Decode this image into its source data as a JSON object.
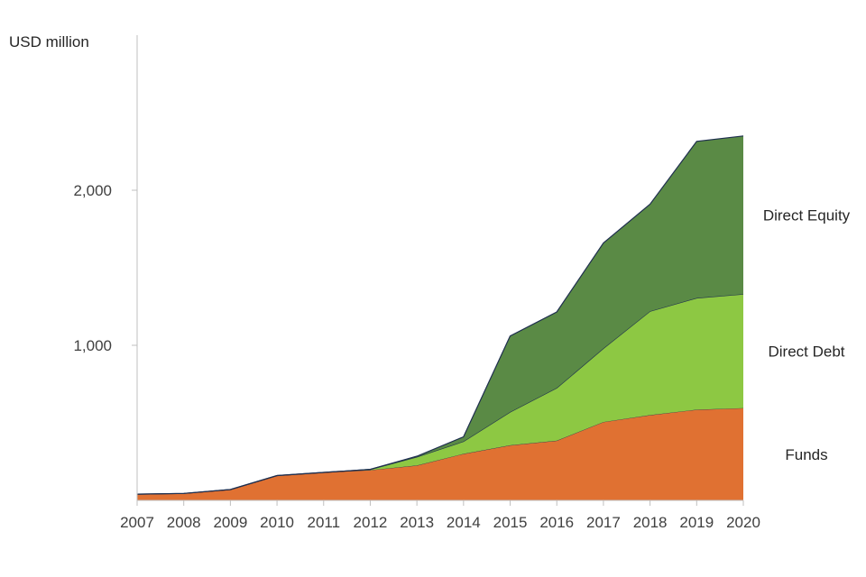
{
  "chart_data": {
    "type": "area",
    "stacked": true,
    "ylabel": "USD million",
    "ylim": [
      0,
      3000
    ],
    "yticks": [
      1000,
      2000
    ],
    "ytick_labels": [
      "1,000",
      "2,000"
    ],
    "categories": [
      "2007",
      "2008",
      "2009",
      "2010",
      "2011",
      "2012",
      "2013",
      "2014",
      "2015",
      "2016",
      "2017",
      "2018",
      "2019",
      "2020"
    ],
    "series": [
      {
        "name": "Funds",
        "color": "#E07132",
        "values": [
          40,
          45,
          70,
          160,
          180,
          195,
          225,
          300,
          355,
          385,
          505,
          550,
          585,
          595
        ]
      },
      {
        "name": "Direct Debt",
        "color": "#8DC843",
        "values": [
          0,
          0,
          0,
          0,
          0,
          5,
          55,
          80,
          215,
          340,
          475,
          670,
          720,
          735
        ]
      },
      {
        "name": "Direct Equity",
        "color": "#5A8A45",
        "values": [
          0,
          0,
          0,
          0,
          0,
          0,
          5,
          30,
          490,
          490,
          680,
          690,
          1010,
          1020
        ]
      }
    ],
    "outline_color": "#1F2F4F",
    "legend": "inline-right"
  }
}
